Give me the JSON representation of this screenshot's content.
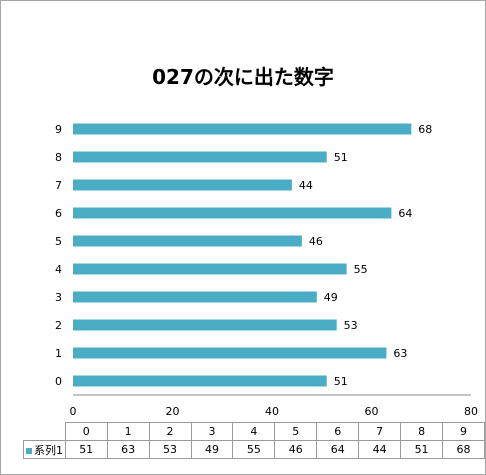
{
  "chart_data": {
    "type": "bar",
    "orientation": "horizontal",
    "title": "027の次に出た数字",
    "categories": [
      "0",
      "1",
      "2",
      "3",
      "4",
      "5",
      "6",
      "7",
      "8",
      "9"
    ],
    "series": [
      {
        "name": "系列1",
        "values": [
          51,
          63,
          53,
          49,
          55,
          46,
          64,
          44,
          51,
          68
        ],
        "color": "#4bacc6"
      }
    ],
    "xlim": [
      0,
      80
    ],
    "xticks": [
      "0",
      "20",
      "40",
      "60",
      "80"
    ],
    "grid": false,
    "data_labels": true,
    "data_table": true
  }
}
